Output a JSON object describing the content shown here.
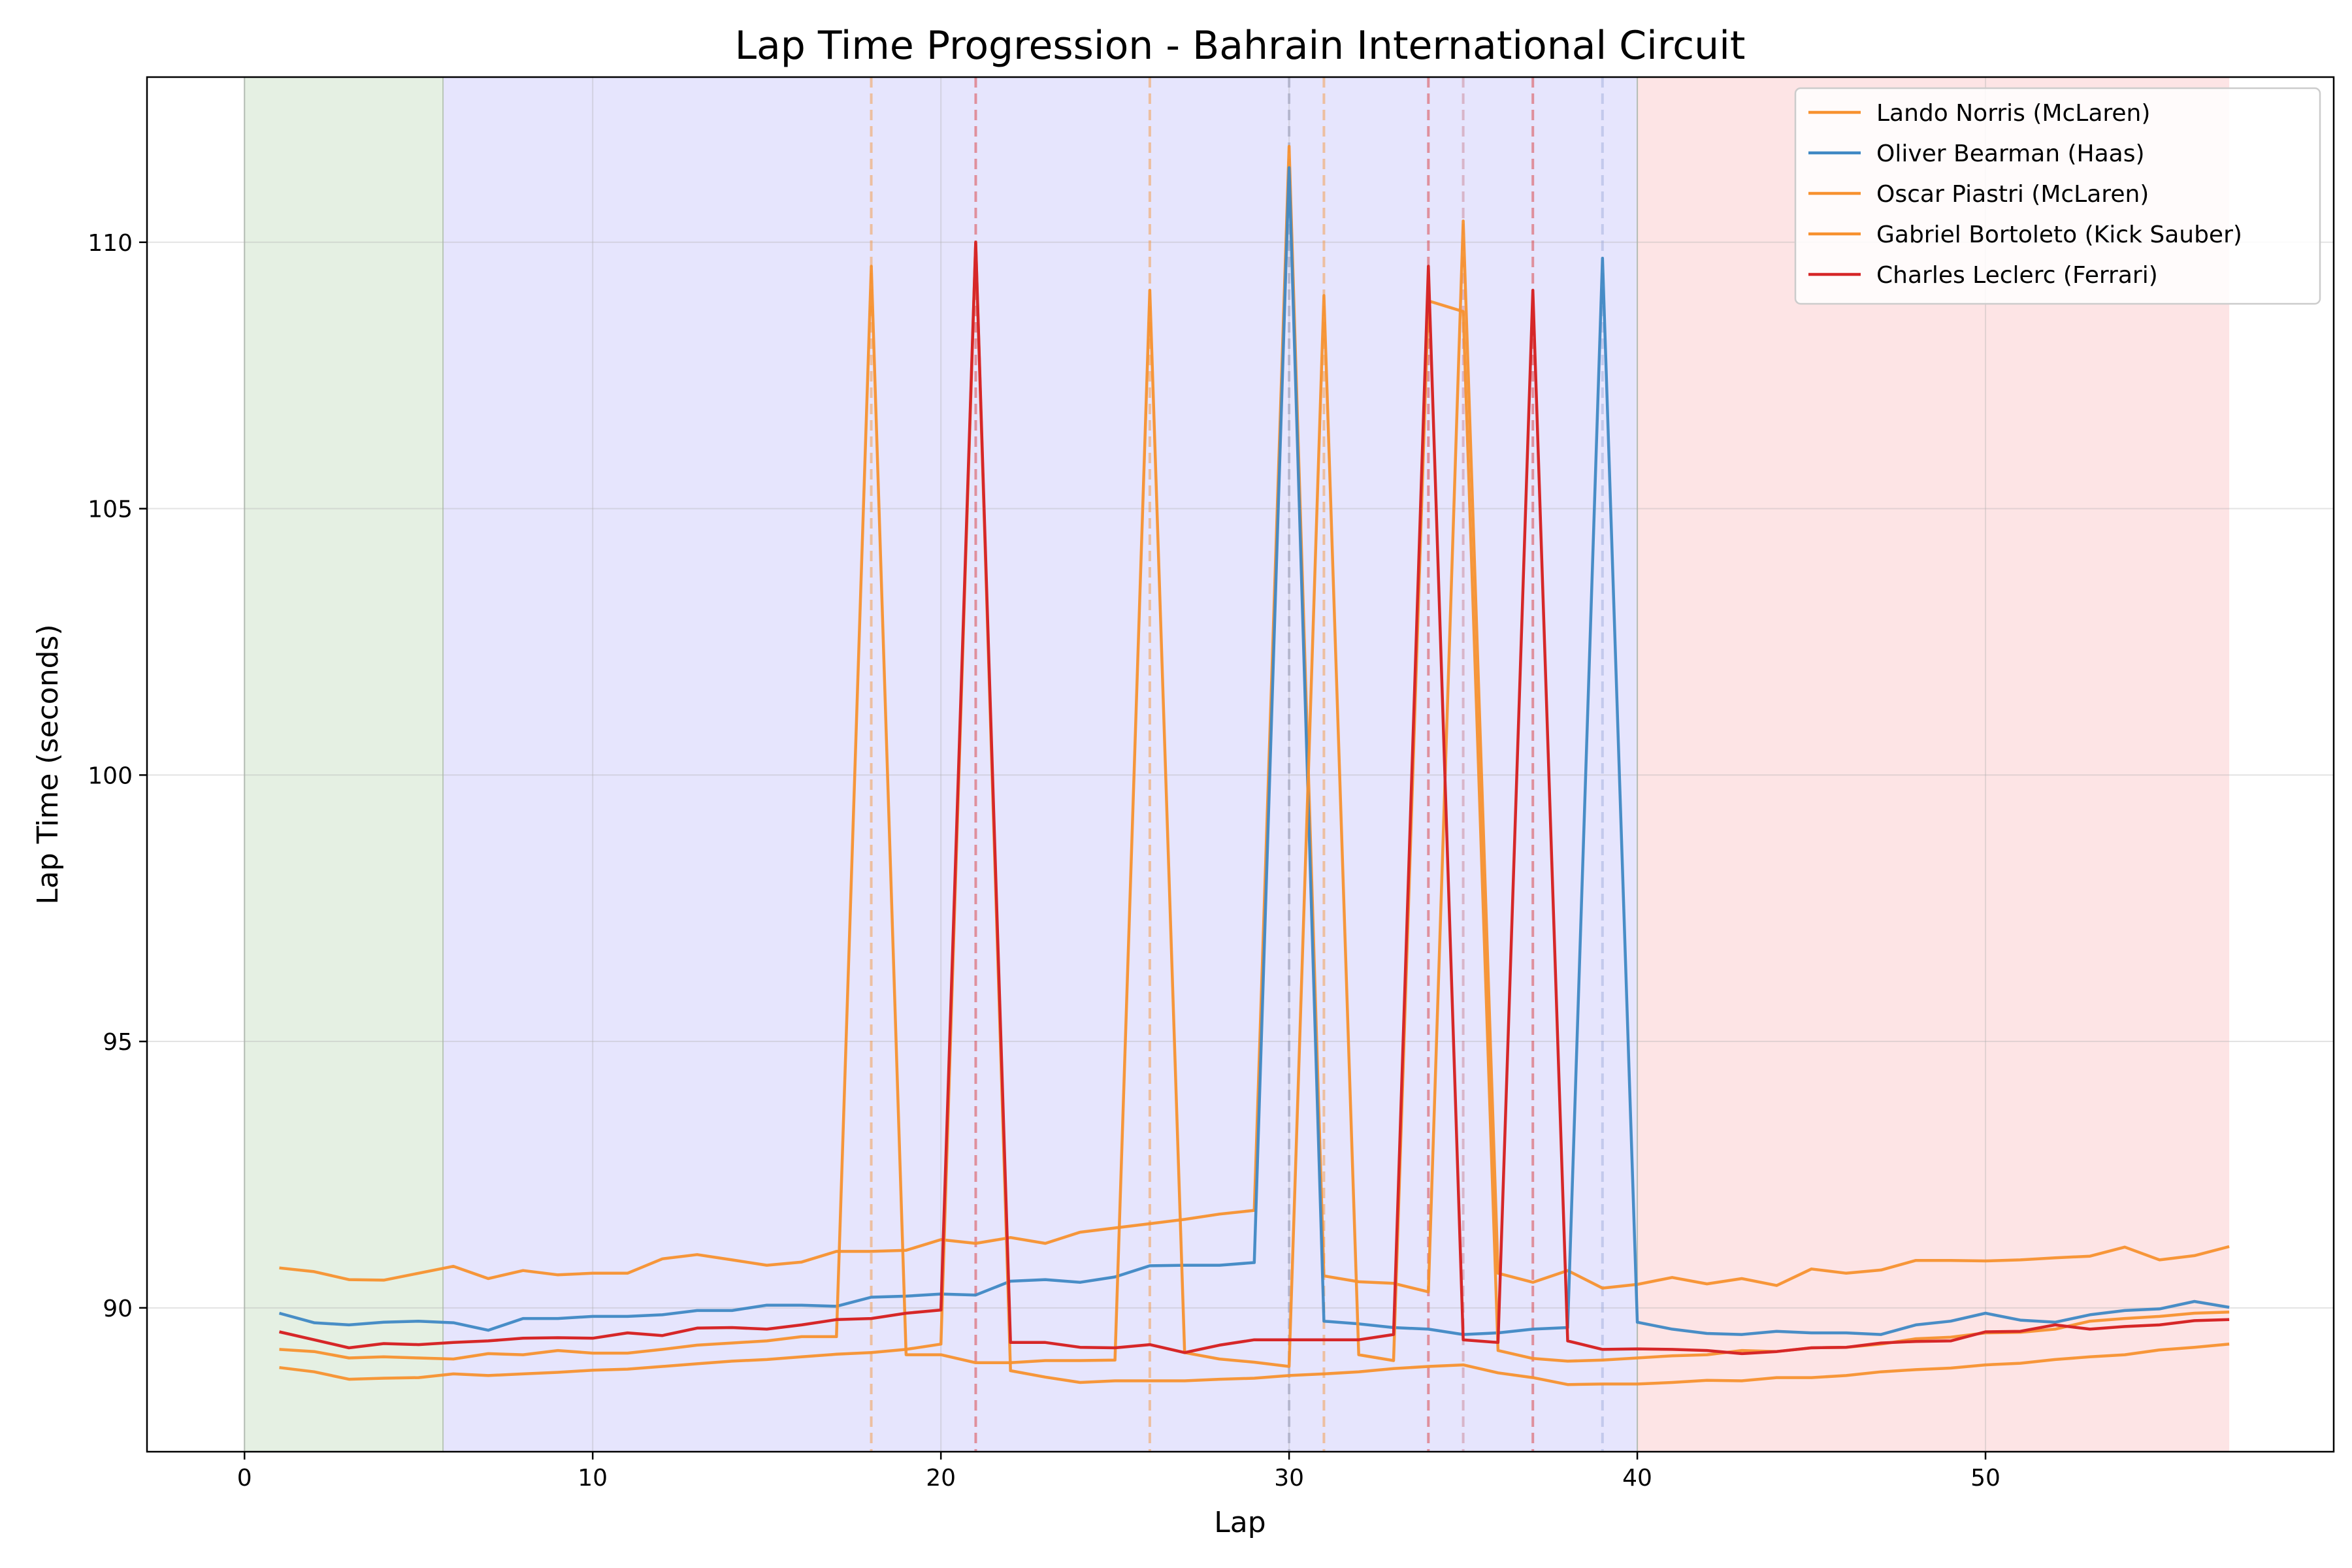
{
  "chart_data": {
    "type": "line",
    "title": "Lap Time Progression - Bahrain International Circuit",
    "xlabel": "Lap",
    "ylabel": "Lap Time (seconds)",
    "xlim": [
      -2.8,
      60.0
    ],
    "ylim": [
      87.3,
      113.1
    ],
    "xticks": [
      0,
      10,
      20,
      30,
      40,
      50
    ],
    "yticks": [
      90,
      95,
      100,
      105,
      110
    ],
    "grid": true,
    "legend_position": "top-right",
    "stint_bands": [
      {
        "x0": 0,
        "x1": 5.7,
        "color": "#e5f0e3"
      },
      {
        "x0": 5.7,
        "x1": 40,
        "color": "#e6e5fd"
      },
      {
        "x0": 40,
        "x1": 57,
        "color": "#fde4e5"
      }
    ],
    "series": [
      {
        "name": "Lando Norris (McLaren)",
        "color": "#f7912f",
        "x": [
          1,
          2,
          3,
          4,
          5,
          6,
          7,
          8,
          9,
          10,
          11,
          12,
          13,
          14,
          15,
          16,
          17,
          18,
          19,
          20,
          21,
          22,
          23,
          24,
          25,
          26,
          27,
          28,
          29,
          30,
          31,
          32,
          33,
          34,
          35,
          36,
          37,
          38,
          39,
          40,
          41,
          42,
          43,
          44,
          45,
          46,
          47,
          48,
          49,
          50,
          51,
          52,
          53,
          54,
          55,
          56,
          57
        ],
        "y": [
          90.75,
          90.68,
          90.53,
          90.52,
          90.65,
          90.78,
          90.55,
          90.7,
          90.62,
          90.65,
          90.65,
          90.92,
          91.0,
          90.9,
          90.8,
          90.86,
          91.06,
          91.06,
          91.08,
          91.28,
          91.21,
          91.32,
          91.21,
          91.42,
          91.5,
          91.58,
          91.66,
          91.76,
          91.83,
          111.8,
          90.6,
          90.49,
          90.46,
          90.3,
          110.4,
          90.65,
          90.48,
          90.7,
          90.37,
          90.44,
          90.57,
          90.45,
          90.55,
          90.42,
          90.73,
          90.65,
          90.71,
          90.89,
          90.89,
          90.88,
          90.9,
          90.94,
          90.97,
          91.14,
          90.9,
          90.98,
          91.15
        ]
      },
      {
        "name": "Oliver Bearman (Haas)",
        "color": "#3f88c4",
        "x": [
          1,
          2,
          3,
          4,
          5,
          6,
          7,
          8,
          9,
          10,
          11,
          12,
          13,
          14,
          15,
          16,
          17,
          18,
          19,
          20,
          21,
          22,
          23,
          24,
          25,
          26,
          27,
          28,
          29,
          30,
          31,
          32,
          33,
          34,
          35,
          36,
          37,
          38,
          39,
          40,
          41,
          42,
          43,
          44,
          45,
          46,
          47,
          48,
          49,
          50,
          51,
          52,
          53,
          54,
          55,
          56,
          57
        ],
        "y": [
          89.9,
          89.72,
          89.68,
          89.73,
          89.75,
          89.72,
          89.58,
          89.8,
          89.8,
          89.84,
          89.84,
          89.87,
          89.95,
          89.95,
          90.05,
          90.05,
          90.03,
          90.2,
          90.22,
          90.26,
          90.24,
          90.5,
          90.53,
          90.48,
          90.58,
          90.79,
          90.8,
          90.8,
          90.85,
          111.4,
          89.75,
          89.7,
          89.63,
          89.6,
          89.5,
          89.53,
          89.6,
          89.63,
          109.7,
          89.73,
          89.6,
          89.52,
          89.5,
          89.56,
          89.53,
          89.53,
          89.5,
          89.68,
          89.75,
          89.9,
          89.77,
          89.73,
          89.87,
          89.95,
          89.98,
          90.12,
          90.01
        ]
      },
      {
        "name": "Oscar Piastri (McLaren)",
        "color": "#f7912f",
        "x": [
          1,
          2,
          3,
          4,
          5,
          6,
          7,
          8,
          9,
          10,
          11,
          12,
          13,
          14,
          15,
          16,
          17,
          18,
          19,
          20,
          21,
          22,
          23,
          24,
          25,
          26,
          27,
          28,
          29,
          30,
          31,
          32,
          33,
          34,
          35,
          36,
          37,
          38,
          39,
          40,
          41,
          42,
          43,
          44,
          45,
          46,
          47,
          48,
          49,
          50,
          51,
          52,
          53,
          54,
          55,
          56,
          57
        ],
        "y": [
          89.22,
          89.18,
          89.06,
          89.08,
          89.06,
          89.04,
          89.14,
          89.12,
          89.2,
          89.15,
          89.15,
          89.22,
          89.3,
          89.34,
          89.38,
          89.46,
          89.46,
          109.55,
          89.12,
          89.12,
          88.97,
          88.97,
          89.01,
          89.01,
          89.02,
          109.1,
          89.16,
          89.04,
          88.98,
          88.9,
          109.0,
          89.12,
          89.01,
          108.9,
          108.7,
          89.2,
          89.05,
          89.0,
          89.02,
          89.06,
          89.1,
          89.12,
          89.2,
          89.18,
          89.25,
          89.26,
          89.32,
          89.42,
          89.45,
          89.53,
          89.54,
          89.6,
          89.75,
          89.8,
          89.84,
          89.9,
          89.92
        ]
      },
      {
        "name": "Gabriel Bortoleto (Kick Sauber)",
        "color": "#f7912f",
        "x": [
          1,
          2,
          3,
          4,
          5,
          6,
          7,
          8,
          9,
          10,
          11,
          12,
          13,
          14,
          15,
          16,
          17,
          18,
          19,
          20,
          21,
          22,
          23,
          24,
          25,
          26,
          27,
          28,
          29,
          30,
          31,
          32,
          33,
          34,
          35,
          36,
          37,
          38,
          39,
          40,
          41,
          42,
          43,
          44,
          45,
          46,
          47,
          48,
          49,
          50,
          51,
          52,
          53,
          54,
          55,
          56,
          57
        ],
        "y": [
          88.88,
          88.8,
          88.66,
          88.68,
          88.69,
          88.76,
          88.73,
          88.76,
          88.79,
          88.83,
          88.85,
          88.9,
          88.95,
          89.0,
          89.03,
          89.08,
          89.13,
          89.16,
          89.22,
          89.32,
          110.0,
          88.82,
          88.7,
          88.6,
          88.63,
          88.63,
          88.63,
          88.66,
          88.68,
          88.73,
          88.76,
          88.8,
          88.86,
          88.9,
          88.93,
          88.78,
          88.69,
          88.56,
          88.57,
          88.57,
          88.6,
          88.64,
          88.63,
          88.69,
          88.69,
          88.73,
          88.8,
          88.84,
          88.87,
          88.93,
          88.96,
          89.03,
          89.08,
          89.12,
          89.21,
          89.26,
          89.32
        ]
      },
      {
        "name": "Charles Leclerc (Ferrari)",
        "color": "#d62728",
        "x": [
          1,
          2,
          3,
          4,
          5,
          6,
          7,
          8,
          9,
          10,
          11,
          12,
          13,
          14,
          15,
          16,
          17,
          18,
          19,
          20,
          21,
          22,
          23,
          24,
          25,
          26,
          27,
          28,
          29,
          30,
          31,
          32,
          33,
          34,
          35,
          36,
          37,
          38,
          39,
          40,
          41,
          42,
          43,
          44,
          45,
          46,
          47,
          48,
          49,
          50,
          51,
          52,
          53,
          54,
          55,
          56,
          57
        ],
        "y": [
          89.55,
          89.4,
          89.25,
          89.33,
          89.31,
          89.35,
          89.38,
          89.43,
          89.44,
          89.43,
          89.53,
          89.48,
          89.62,
          89.63,
          89.6,
          89.68,
          89.78,
          89.8,
          89.9,
          89.96,
          110.0,
          89.35,
          89.35,
          89.26,
          89.25,
          89.31,
          89.16,
          89.3,
          89.4,
          89.4,
          89.4,
          89.4,
          89.5,
          109.55,
          89.4,
          89.35,
          109.1,
          89.38,
          89.22,
          89.23,
          89.22,
          89.2,
          89.14,
          89.18,
          89.25,
          89.26,
          89.34,
          89.37,
          89.38,
          89.55,
          89.56,
          89.68,
          89.6,
          89.65,
          89.68,
          89.76,
          89.78
        ]
      }
    ],
    "pit_lines": [
      {
        "x": 18,
        "color": "#f7912f"
      },
      {
        "x": 21,
        "color": "#d62728"
      },
      {
        "x": 26,
        "color": "#f7912f"
      },
      {
        "x": 30,
        "color": "#8a8fa8"
      },
      {
        "x": 31,
        "color": "#f7912f"
      },
      {
        "x": 34,
        "color": "#d62728"
      },
      {
        "x": 35,
        "color": "#c87a8a"
      },
      {
        "x": 37,
        "color": "#d62728"
      },
      {
        "x": 39,
        "color": "#9aa6d8"
      }
    ]
  }
}
